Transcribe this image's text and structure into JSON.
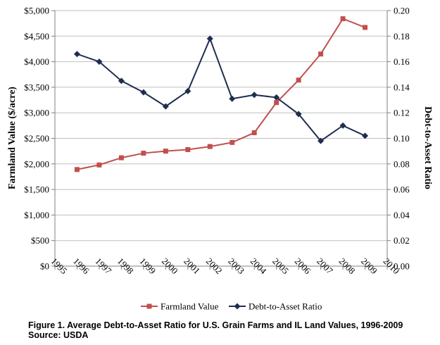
{
  "chart_data": {
    "type": "line",
    "title": "",
    "xlabel": "",
    "ylabel": "Farmland Value ($/acre)",
    "y2label": "Debt-to-Asset Ratio",
    "x_ticks": [
      "1995",
      "1996",
      "1997",
      "1998",
      "1999",
      "2000",
      "2001",
      "2002",
      "2003",
      "2004",
      "2005",
      "2006",
      "2007",
      "2008",
      "2009",
      "2010"
    ],
    "xlim": [
      1995,
      2010
    ],
    "ylim": [
      0,
      5000
    ],
    "y2lim": [
      0,
      0.2
    ],
    "y_ticks": [
      "$0",
      "$500",
      "$1,000",
      "$1,500",
      "$2,000",
      "$2,500",
      "$3,000",
      "$3,500",
      "$4,000",
      "$4,500",
      "$5,000"
    ],
    "y2_ticks": [
      "0.00",
      "0.02",
      "0.04",
      "0.06",
      "0.08",
      "0.10",
      "0.12",
      "0.14",
      "0.16",
      "0.18",
      "0.20"
    ],
    "grid": "horizontal",
    "legend_position": "bottom",
    "series": [
      {
        "name": "Farmland Value",
        "axis": "left",
        "color": "#c0504d",
        "marker": "square",
        "x": [
          1996,
          1997,
          1998,
          1999,
          2000,
          2001,
          2002,
          2003,
          2004,
          2005,
          2006,
          2007,
          2008,
          2009
        ],
        "values": [
          1890,
          1980,
          2120,
          2210,
          2250,
          2280,
          2340,
          2420,
          2610,
          3200,
          3640,
          4150,
          4840,
          4670
        ]
      },
      {
        "name": "Debt-to-Asset Ratio",
        "axis": "right",
        "color": "#1f2d4f",
        "marker": "diamond",
        "x": [
          1996,
          1997,
          1998,
          1999,
          2000,
          2001,
          2002,
          2003,
          2004,
          2005,
          2006,
          2007,
          2008,
          2009
        ],
        "values": [
          0.166,
          0.16,
          0.145,
          0.136,
          0.125,
          0.137,
          0.178,
          0.131,
          0.134,
          0.132,
          0.119,
          0.098,
          0.11,
          0.102
        ]
      }
    ]
  },
  "caption": {
    "line1": "Figure 1. Average Debt-to-Asset Ratio for U.S. Grain Farms and IL Land Values, 1996-2009",
    "line2": "Source: USDA"
  }
}
